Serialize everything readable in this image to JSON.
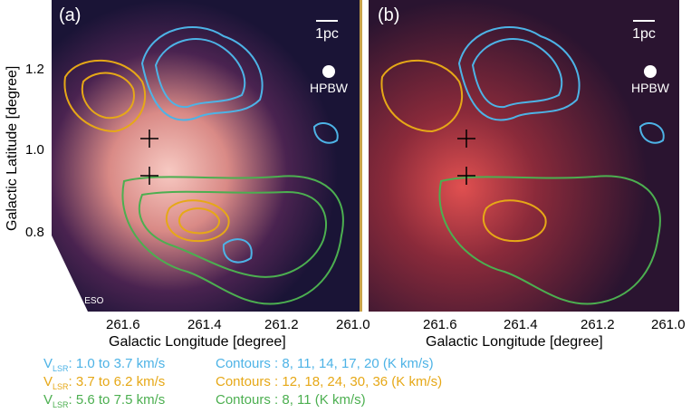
{
  "panels": [
    {
      "label": "(a)",
      "scale_label": "1pc",
      "beam_label": "HPBW",
      "credit": "Credit: ESO"
    },
    {
      "label": "(b)",
      "scale_label": "1pc",
      "beam_label": "HPBW"
    }
  ],
  "axes": {
    "x_title": "Galactic Longitude [degree]",
    "y_title": "Galactic Latitude [degree]",
    "x_ticks": [
      "261.6",
      "261.4",
      "261.2",
      "261.0"
    ],
    "y_ticks": [
      "1.2",
      "1.0",
      "0.8"
    ]
  },
  "legend": [
    {
      "vlsr_prefix": "V",
      "vlsr_sub": "LSR",
      "range": ": 1.0 to 3.7 km/s",
      "contours": "Contours : 8, 11, 14, 17, 20 (K km/s)",
      "color": "#4db3e6"
    },
    {
      "vlsr_prefix": "V",
      "vlsr_sub": "LSR",
      "range": ": 3.7 to 6.2 km/s",
      "contours": "Contours : 12, 18, 24, 30, 36 (K km/s)",
      "color": "#e6a817"
    },
    {
      "vlsr_prefix": "V",
      "vlsr_sub": "LSR",
      "range": ": 5.6 to 7.5 km/s",
      "contours": "Contours : 8, 11 (K km/s)",
      "color": "#4caf50"
    }
  ],
  "colors": {
    "cyan": "#4db3e6",
    "orange": "#e6a817",
    "green": "#4caf50"
  }
}
